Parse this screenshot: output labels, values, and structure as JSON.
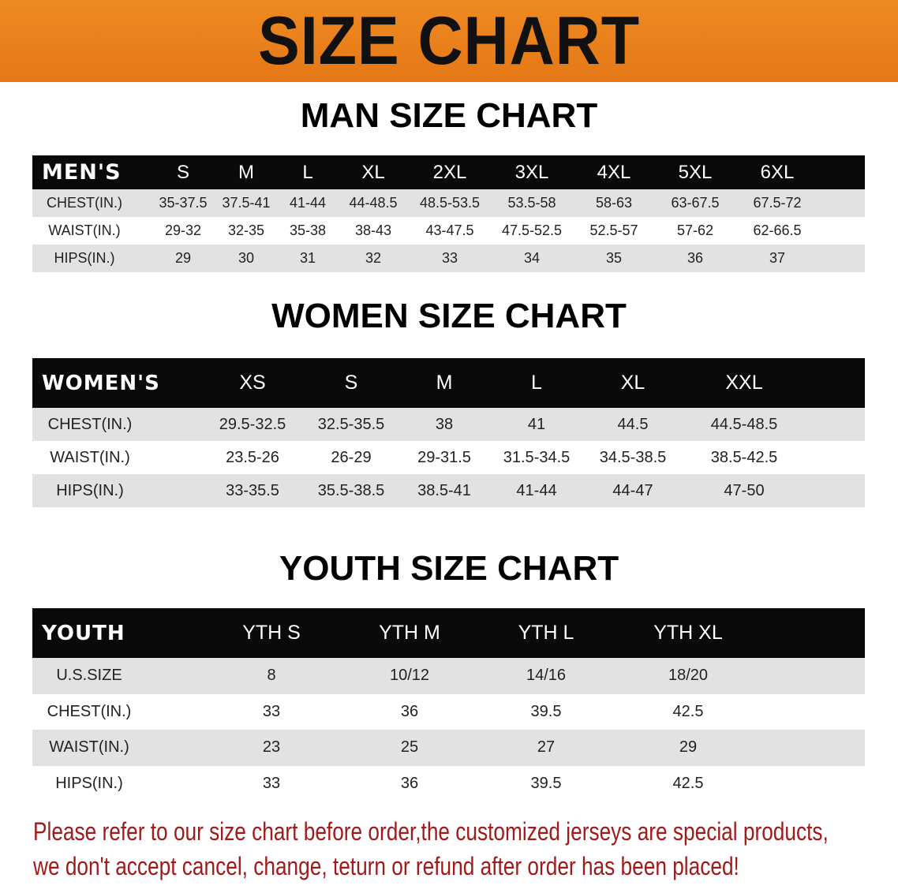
{
  "banner": {
    "title": "SIZE CHART",
    "color": "#e8801c"
  },
  "men": {
    "title": "MAN SIZE CHART",
    "header": [
      "MEN'S",
      "S",
      "M",
      "L",
      "XL",
      "2XL",
      "3XL",
      "4XL",
      "5XL",
      "6XL"
    ],
    "rows": [
      [
        "CHEST(IN.)",
        "35-37.5",
        "37.5-41",
        "41-44",
        "44-48.5",
        "48.5-53.5",
        "53.5-58",
        "58-63",
        "63-67.5",
        "67.5-72"
      ],
      [
        "WAIST(IN.)",
        "29-32",
        "32-35",
        "35-38",
        "38-43",
        "43-47.5",
        "47.5-52.5",
        "52.5-57",
        "57-62",
        "62-66.5"
      ],
      [
        "HIPS(IN.)",
        "29",
        "30",
        "31",
        "32",
        "33",
        "34",
        "35",
        "36",
        "37"
      ]
    ]
  },
  "women": {
    "title": "WOMEN SIZE CHART",
    "header": [
      "WOMEN'S",
      "XS",
      "S",
      "M",
      "L",
      "XL",
      "XXL"
    ],
    "rows": [
      [
        "CHEST(IN.)",
        "29.5-32.5",
        "32.5-35.5",
        "38",
        "41",
        "44.5",
        "44.5-48.5"
      ],
      [
        "WAIST(IN.)",
        "23.5-26",
        "26-29",
        "29-31.5",
        "31.5-34.5",
        "34.5-38.5",
        "38.5-42.5"
      ],
      [
        "HIPS(IN.)",
        "33-35.5",
        "35.5-38.5",
        "38.5-41",
        "41-44",
        "44-47",
        "47-50"
      ]
    ]
  },
  "youth": {
    "title": "YOUTH SIZE CHART",
    "header": [
      "YOUTH",
      "YTH S",
      "YTH M",
      "YTH L",
      "YTH XL"
    ],
    "rows": [
      [
        "U.S.SIZE",
        "8",
        "10/12",
        "14/16",
        "18/20"
      ],
      [
        "CHEST(IN.)",
        "33",
        "36",
        "39.5",
        "42.5"
      ],
      [
        "WAIST(IN.)",
        "23",
        "25",
        "27",
        "29"
      ],
      [
        "HIPS(IN.)",
        "33",
        "36",
        "39.5",
        "42.5"
      ]
    ]
  },
  "footer": {
    "line1": "Please refer to our size chart before order,the customized jerseys are special products,",
    "line2": "we don't accept cancel, change, teturn or refund after order has been placed!",
    "color": "#a01a1a"
  }
}
